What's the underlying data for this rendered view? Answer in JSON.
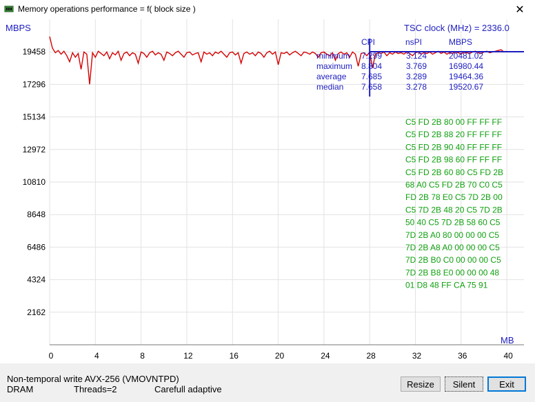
{
  "window": {
    "title": "Memory operations performance = f( block size )",
    "close_glyph": "✕"
  },
  "chart_data": {
    "type": "line",
    "ylabel": "MBPS",
    "xlabel": "MB",
    "yticks": [
      2162,
      4324,
      6486,
      8648,
      10810,
      12972,
      15134,
      17296,
      19458
    ],
    "xticks": [
      0,
      4,
      8,
      12,
      16,
      20,
      24,
      28,
      32,
      36,
      40
    ],
    "xlim": [
      0,
      41.5
    ],
    "ylim": [
      0,
      21620
    ],
    "grid": true,
    "series_color": "#d40000",
    "marker_color": "#1c1cc0",
    "marker_x": 28,
    "reference_y": 19464.36,
    "series": [
      {
        "x": [
          0,
          0.25,
          0.5,
          0.75,
          1,
          1.25,
          1.5,
          1.75,
          2,
          2.25,
          2.5,
          2.75,
          3,
          3.25,
          3.5,
          3.75,
          4,
          4.25,
          4.5,
          4.75,
          5,
          5.25,
          5.5,
          5.75,
          6,
          6.25,
          6.5,
          6.75,
          7,
          7.25,
          7.5,
          7.75,
          8,
          8.25,
          8.5,
          8.75,
          9,
          9.25,
          9.5,
          9.75,
          10,
          10.25,
          10.5,
          10.75,
          11,
          11.25,
          11.5,
          11.75,
          12,
          12.25,
          12.5,
          12.75,
          13,
          13.25,
          13.5,
          13.75,
          14,
          14.25,
          14.5,
          14.75,
          15,
          15.25,
          15.5,
          15.75,
          16,
          16.25,
          16.5,
          16.75,
          17,
          17.25,
          17.5,
          17.75,
          18,
          18.25,
          18.5,
          18.75,
          19,
          19.25,
          19.5,
          19.75,
          20,
          20.25,
          20.5,
          20.75,
          21,
          21.25,
          21.5,
          21.75,
          22,
          22.25,
          22.5,
          22.75,
          23,
          23.25,
          23.5,
          23.75,
          24,
          24.25,
          24.5,
          24.75,
          25,
          25.25,
          25.5,
          25.75,
          26,
          26.25,
          26.5,
          26.75,
          27,
          27.25,
          27.5,
          27.75,
          28,
          28.25,
          28.5,
          28.75,
          29,
          29.25,
          29.5,
          29.75,
          30,
          30.25,
          30.5,
          30.75,
          31,
          31.25,
          31.5,
          31.75,
          32,
          32.25,
          32.5,
          32.75,
          33,
          33.25,
          33.5,
          33.75,
          34,
          34.25,
          34.5,
          34.75,
          35,
          35.25,
          35.5,
          35.75,
          36,
          36.25,
          36.5,
          36.75,
          37,
          37.25,
          37.5,
          37.75,
          38,
          38.25,
          38.5,
          38.75,
          39,
          39.25,
          39.5,
          39.75,
          40
        ],
        "values": [
          20481,
          19700,
          19400,
          19550,
          19300,
          19500,
          19200,
          18800,
          19400,
          19100,
          19350,
          18300,
          19450,
          19300,
          17300,
          19400,
          19100,
          19500,
          19350,
          19200,
          19450,
          19000,
          19400,
          19250,
          19500,
          18900,
          19350,
          19450,
          19200,
          19400,
          19300,
          18700,
          19450,
          19350,
          19100,
          19400,
          19500,
          19250,
          19400,
          19300,
          18900,
          19450,
          19350,
          19200,
          19400,
          19500,
          19300,
          19100,
          19400,
          19450,
          19250,
          19350,
          19400,
          18800,
          19450,
          19300,
          19400,
          19200,
          19450,
          19350,
          19500,
          19300,
          19100,
          19400,
          19450,
          19250,
          19400,
          18700,
          19350,
          19450,
          19300,
          19400,
          19200,
          19450,
          19350,
          19100,
          19400,
          19500,
          19300,
          19450,
          18600,
          19400,
          19350,
          19450,
          19250,
          19400,
          19500,
          19350,
          19200,
          19450,
          19400,
          19300,
          19450,
          19350,
          19100,
          19400,
          19450,
          19300,
          19200,
          19400,
          18900,
          19350,
          19450,
          19300,
          19400,
          19100,
          19450,
          19300,
          18500,
          19350,
          19400,
          19200,
          19450,
          18400,
          19300,
          19400,
          19350,
          19450,
          19200,
          19400,
          19300,
          19450,
          19350,
          19400,
          19300,
          19450,
          19350,
          19200,
          19400,
          19450,
          19300,
          19400,
          19350,
          19450,
          19300,
          19400,
          19500,
          19350,
          19450,
          19300,
          19400,
          19350,
          19450,
          19400,
          19300,
          19450,
          19400,
          19350,
          19450,
          19500,
          19400,
          19350,
          19450,
          19500,
          19400,
          19450,
          19500,
          19550,
          19600,
          19450,
          19500
        ]
      }
    ]
  },
  "overlay": {
    "tsc_label": "TSC clock (MHz)  = 2336.0",
    "headers": [
      "CPI",
      "nsPI",
      "MBPS"
    ],
    "rows": [
      {
        "label": "minimum",
        "cpi": "7.299",
        "nspi": "3.124",
        "mbps": "20481.02"
      },
      {
        "label": "maximum",
        "cpi": "8.804",
        "nspi": "3.769",
        "mbps": "16980.44"
      },
      {
        "label": "average",
        "cpi": "7.685",
        "nspi": "3.289",
        "mbps": "19464.36"
      },
      {
        "label": "median",
        "cpi": "7.658",
        "nspi": "3.278",
        "mbps": "19520.67"
      }
    ],
    "hex_lines": [
      "C5  FD  2B  80  00  FF  FF  FF",
      "C5  FD  2B  88  20  FF  FF  FF",
      "C5  FD  2B  90  40  FF  FF  FF",
      "C5  FD  2B  98  60  FF  FF  FF",
      "C5  FD  2B  60  80  C5  FD  2B",
      "68  A0  C5  FD  2B  70  C0  C5",
      "FD  2B  78  E0  C5  7D  2B  00",
      "C5  7D  2B  48  20  C5  7D  2B",
      "50  40  C5  7D  2B  58  60  C5",
      "7D  2B  A0  80  00  00  00  C5",
      "7D  2B  A8  A0  00  00  00  C5",
      "7D  2B  B0  C0  00  00  00  C5",
      "7D  2B  B8  E0  00  00  00  48",
      "01  D8  48  FF  CA  75  91"
    ]
  },
  "status": {
    "line1": "Non-temporal write AVX-256 (VMOVNTPD)",
    "line2_a": "DRAM",
    "line2_b": "Threads=2",
    "line2_c": "Carefull adaptive"
  },
  "buttons": {
    "resize": "Resize",
    "silent": "Silent",
    "exit": "Exit"
  }
}
